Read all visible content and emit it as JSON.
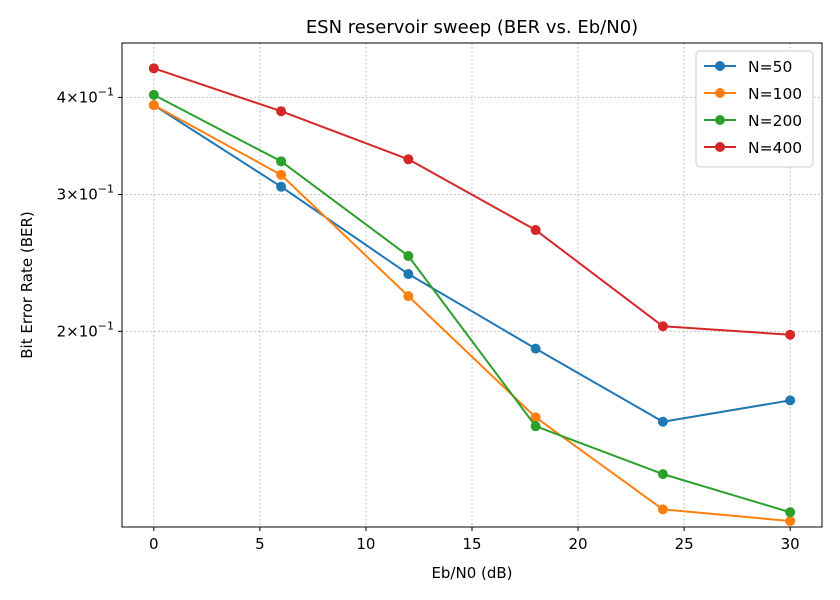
{
  "chart_data": {
    "type": "line",
    "title": "ESN reservoir sweep (BER vs. Eb/N0)",
    "xlabel": "Eb/N0 (dB)",
    "ylabel": "Bit Error Rate (BER)",
    "yscale": "log",
    "grid": true,
    "legend_position": "top-right",
    "x": [
      0,
      6,
      12,
      18,
      24,
      30
    ],
    "xlim": [
      -1.5,
      31.5
    ],
    "ylim": [
      0.112,
      0.47
    ],
    "xticks": [
      0,
      5,
      10,
      15,
      20,
      25,
      30
    ],
    "xtick_labels": [
      "0",
      "5",
      "10",
      "15",
      "20",
      "25",
      "30"
    ],
    "yticks": [
      {
        "value": 0.4,
        "mantissa": "4",
        "base": "10",
        "exp": "−1"
      },
      {
        "value": 0.3,
        "mantissa": "3",
        "base": "10",
        "exp": "−1"
      },
      {
        "value": 0.2,
        "mantissa": "2",
        "base": "10",
        "exp": "−1"
      }
    ],
    "series": [
      {
        "name": "N=50",
        "color": "#1f77b4",
        "values": [
          0.391,
          0.307,
          0.237,
          0.19,
          0.153,
          0.163
        ]
      },
      {
        "name": "N=100",
        "color": "#ff7f0e",
        "values": [
          0.391,
          0.318,
          0.222,
          0.155,
          0.118,
          0.114
        ]
      },
      {
        "name": "N=200",
        "color": "#2ca02c",
        "values": [
          0.403,
          0.331,
          0.25,
          0.151,
          0.131,
          0.117
        ]
      },
      {
        "name": "N=400",
        "color": "#d62728",
        "values": [
          0.436,
          0.384,
          0.333,
          0.27,
          0.203,
          0.198
        ]
      }
    ]
  }
}
